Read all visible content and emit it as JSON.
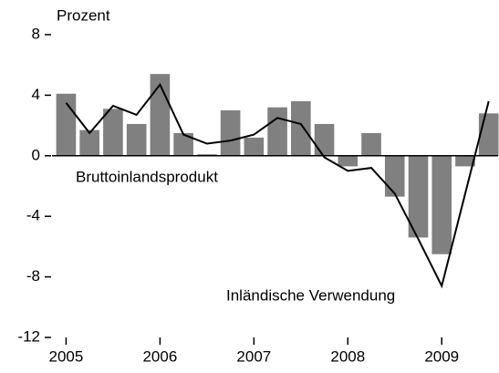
{
  "chart_data": {
    "type": "bar_line",
    "y_label": "Prozent",
    "x": [
      2005,
      2005.25,
      2005.5,
      2005.75,
      2006,
      2006.25,
      2006.5,
      2006.75,
      2007,
      2007.25,
      2007.5,
      2007.75,
      2008,
      2008.25,
      2008.5,
      2008.75,
      2009,
      2009.25,
      2009.5
    ],
    "series": [
      {
        "name": "Bruttoinlandsprodukt",
        "type": "bar",
        "color": "#808080",
        "values": [
          4.1,
          1.7,
          3.1,
          2.1,
          5.4,
          1.5,
          0.1,
          3.0,
          1.2,
          3.2,
          3.6,
          2.1,
          -0.7,
          1.5,
          -2.7,
          -5.4,
          -6.5,
          -0.7,
          2.8
        ]
      },
      {
        "name": "Inländische Verwendung",
        "type": "line",
        "color": "#000000",
        "values": [
          3.5,
          1.5,
          3.3,
          2.7,
          4.7,
          1.4,
          0.8,
          1.0,
          1.4,
          2.5,
          2.1,
          -0.1,
          -1.0,
          -0.8,
          -2.5,
          -5.5,
          -8.6,
          -2.5,
          3.6
        ]
      }
    ],
    "xlim": [
      2004.85,
      2009.6
    ],
    "xticks": [
      2005,
      2006,
      2007,
      2008,
      2009
    ],
    "ylim": [
      -12,
      8
    ],
    "yticks": [
      8,
      4,
      0,
      -4,
      -8,
      -12
    ]
  }
}
